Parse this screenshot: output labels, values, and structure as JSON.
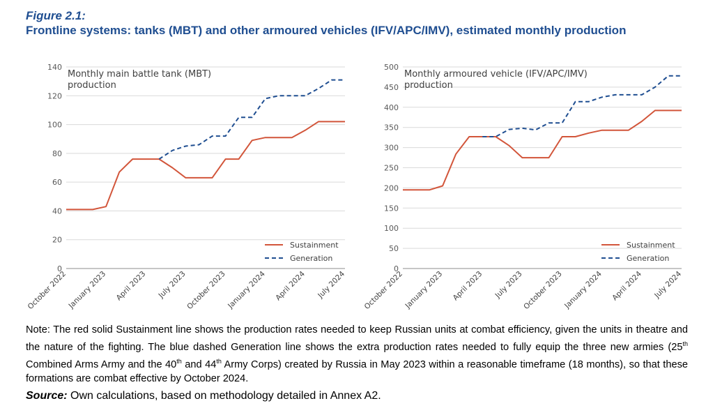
{
  "figure": {
    "label": "Figure 2.1:",
    "title": "Frontline systems: tanks (MBT) and other armoured vehicles (IFV/APC/IMV), estimated monthly production"
  },
  "chart_data": [
    {
      "type": "line",
      "title_lines": [
        "Monthly main battle tank (MBT)",
        "production"
      ],
      "x": [
        "October 2022",
        "November 2022",
        "December 2022",
        "January 2023",
        "February 2023",
        "March 2023",
        "April 2023",
        "May 2023",
        "June 2023",
        "July 2023",
        "August 2023",
        "September 2023",
        "October 2023",
        "November 2023",
        "December 2023",
        "January 2024",
        "February 2024",
        "March 2024",
        "April 2024",
        "May 2024",
        "June 2024",
        "July 2024"
      ],
      "tick_labels": [
        "October 2022",
        "January 2023",
        "April 2023",
        "July 2023",
        "October 2023",
        "January 2024",
        "April 2024",
        "July 2024"
      ],
      "tick_indices": [
        0,
        3,
        6,
        9,
        12,
        15,
        18,
        21
      ],
      "ylim": [
        0,
        140
      ],
      "yticks": [
        0,
        20,
        40,
        60,
        80,
        100,
        120,
        140
      ],
      "series": [
        {
          "name": "Sustainment",
          "color": "#d2553a",
          "dash": false,
          "values": [
            41,
            41,
            41,
            43,
            67,
            76,
            76,
            76,
            70,
            63,
            63,
            63,
            76,
            76,
            89,
            91,
            91,
            91,
            96,
            102,
            102,
            102
          ]
        },
        {
          "name": "Generation",
          "color": "#1f4e91",
          "dash": true,
          "values": [
            null,
            null,
            null,
            null,
            null,
            null,
            null,
            76,
            82,
            85,
            86,
            92,
            92,
            105,
            105,
            118,
            120,
            120,
            120,
            125,
            131,
            131
          ]
        }
      ],
      "legend": [
        "Sustainment",
        "Generation"
      ]
    },
    {
      "type": "line",
      "title_lines": [
        "Monthly armoured vehicle (IFV/APC/IMV)",
        "production"
      ],
      "x": [
        "October 2022",
        "November 2022",
        "December 2022",
        "January 2023",
        "February 2023",
        "March 2023",
        "April 2023",
        "May 2023",
        "June 2023",
        "July 2023",
        "August 2023",
        "September 2023",
        "October 2023",
        "November 2023",
        "December 2023",
        "January 2024",
        "February 2024",
        "March 2024",
        "April 2024",
        "May 2024",
        "June 2024",
        "July 2024"
      ],
      "tick_labels": [
        "October 2022",
        "January 2023",
        "April 2023",
        "July 2023",
        "October 2023",
        "January 2024",
        "April 2024",
        "July 2024"
      ],
      "tick_indices": [
        0,
        3,
        6,
        9,
        12,
        15,
        18,
        21
      ],
      "ylim": [
        0,
        500
      ],
      "yticks": [
        0,
        50,
        100,
        150,
        200,
        250,
        300,
        350,
        400,
        450,
        500
      ],
      "series": [
        {
          "name": "Sustainment",
          "color": "#d2553a",
          "dash": false,
          "values": [
            195,
            195,
            195,
            205,
            284,
            327,
            327,
            327,
            305,
            275,
            275,
            275,
            327,
            327,
            336,
            343,
            343,
            343,
            365,
            392,
            392,
            392
          ]
        },
        {
          "name": "Generation",
          "color": "#1f4e91",
          "dash": true,
          "values": [
            null,
            null,
            null,
            null,
            null,
            null,
            327,
            327,
            345,
            348,
            344,
            361,
            361,
            414,
            414,
            425,
            431,
            431,
            431,
            450,
            478,
            478
          ]
        }
      ],
      "legend": [
        "Sustainment",
        "Generation"
      ]
    }
  ],
  "note": {
    "text": "Note: The red solid Sustainment line shows the production rates needed to keep Russian units at combat efficiency, given the units in theatre and the nature of the fighting. The blue dashed Generation line shows the extra production rates needed to fully equip the three new armies (25th Combined Arms Army and the 40th and 44th Army Corps) created by Russia in May 2023 within a reasonable timeframe (18 months), so that these formations are combat effective by October 2024."
  },
  "source": {
    "label": "Source:",
    "text": "Own calculations, based on methodology detailed in Annex A2."
  }
}
